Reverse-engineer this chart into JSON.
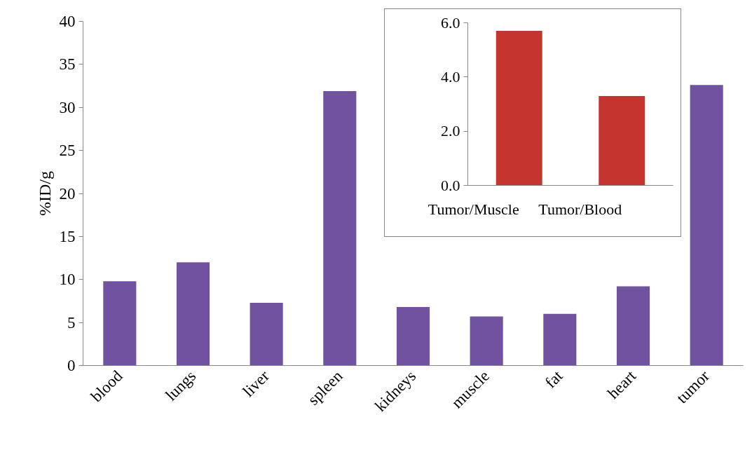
{
  "chart_data": [
    {
      "type": "bar",
      "ylabel": "%ID/g",
      "categories": [
        "blood",
        "lungs",
        "liver",
        "spleen",
        "kidneys",
        "muscle",
        "fat",
        "heart",
        "tumor"
      ],
      "series": [
        {
          "color": "#7152a0",
          "values": [
            9.8,
            12.0,
            7.3,
            31.9,
            6.8,
            5.7,
            6.0,
            9.2,
            32.6
          ]
        }
      ],
      "ylim": [
        0,
        40
      ],
      "yticks": [
        0,
        5,
        10,
        15,
        20,
        25,
        30,
        35,
        40
      ],
      "grid": false
    },
    {
      "type": "bar",
      "categories": [
        "Tumor/Muscle",
        "Tumor/Blood"
      ],
      "series": [
        {
          "color": "#c4352f",
          "values": [
            5.7,
            3.3
          ]
        }
      ],
      "ylim": [
        0,
        6
      ],
      "yticks": [
        {
          "value": 0,
          "label": "0.0"
        },
        {
          "value": 2,
          "label": "2.0"
        },
        {
          "value": 4,
          "label": "4.0"
        },
        {
          "value": 6,
          "label": "6.0"
        }
      ],
      "grid": false
    }
  ]
}
